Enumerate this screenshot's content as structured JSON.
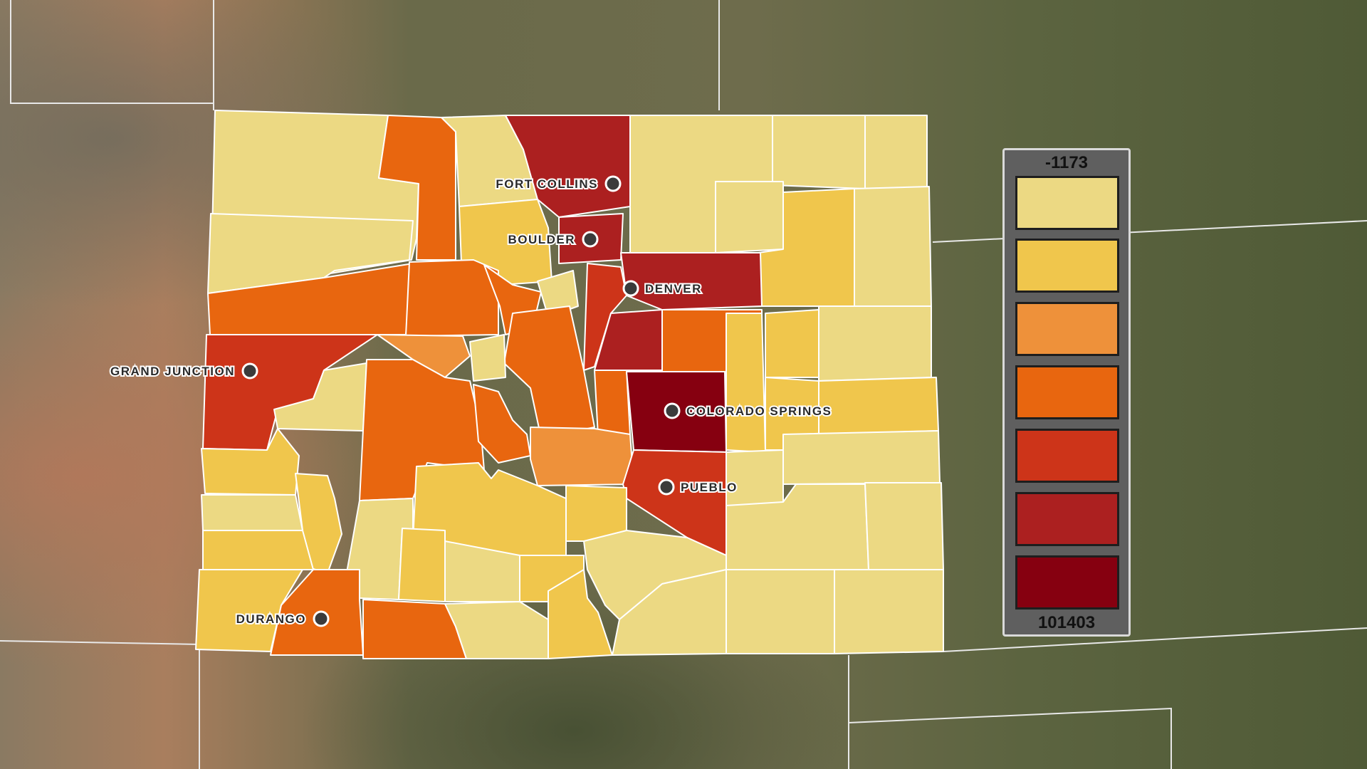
{
  "legend": {
    "min_label": "-1173",
    "max_label": "101403",
    "colors": [
      "#ecd983",
      "#f0c64c",
      "#ee913a",
      "#e8660f",
      "#cd3419",
      "#ac2020",
      "#860010"
    ]
  },
  "cities": {
    "fort_collins": "FORT COLLINS",
    "boulder": "BOULDER",
    "denver": "DENVER",
    "grand_junction": "GRAND JUNCTION",
    "colorado_springs": "COLORADO SPRINGS",
    "pueblo": "PUEBLO",
    "durango": "DURANGO"
  }
}
